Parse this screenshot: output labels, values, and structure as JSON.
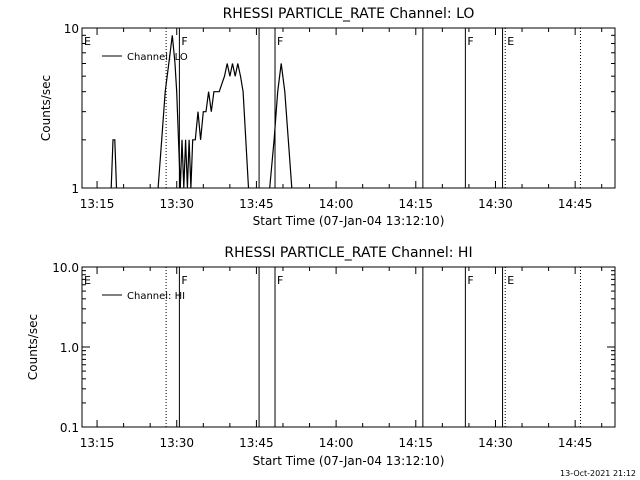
{
  "chart_data": [
    {
      "type": "line",
      "title": "RHESSI PARTICLE_RATE Channel: LO",
      "xlabel": "Start Time (07-Jan-04 13:12:10)",
      "ylabel": "Counts/sec",
      "yscale": "log",
      "xlim": [
        "13:12:10",
        "14:52:30"
      ],
      "ylim": [
        1,
        10
      ],
      "xticks": [
        "13:15",
        "13:30",
        "13:45",
        "14:00",
        "14:15",
        "14:30",
        "14:45"
      ],
      "yticks": [
        "1",
        "10"
      ],
      "legend": {
        "entry": "Channel: LO",
        "placement": "top-left"
      },
      "series": [
        {
          "name": "Channel: LO",
          "points": [
            [
              "13:17:40",
              1
            ],
            [
              "13:18:00",
              2
            ],
            [
              "13:18:20",
              2
            ],
            [
              "13:18:40",
              1
            ],
            [
              "13:26:30",
              1
            ],
            [
              "13:27:10",
              2
            ],
            [
              "13:27:50",
              4
            ],
            [
              "13:28:30",
              6
            ],
            [
              "13:29:10",
              9
            ],
            [
              "13:29:40",
              6
            ],
            [
              "13:30:00",
              4
            ],
            [
              "13:30:20",
              2
            ],
            [
              "13:30:40",
              1
            ],
            [
              "13:31:00",
              2
            ],
            [
              "13:31:20",
              1
            ],
            [
              "13:31:40",
              2
            ],
            [
              "13:32:00",
              1
            ],
            [
              "13:32:20",
              2
            ],
            [
              "13:32:40",
              1
            ],
            [
              "13:33:00",
              2
            ],
            [
              "13:33:30",
              2
            ],
            [
              "13:34:00",
              3
            ],
            [
              "13:34:30",
              2
            ],
            [
              "13:35:00",
              3
            ],
            [
              "13:35:30",
              3
            ],
            [
              "13:36:00",
              4
            ],
            [
              "13:36:30",
              3
            ],
            [
              "13:37:00",
              4
            ],
            [
              "13:38:00",
              4
            ],
            [
              "13:39:00",
              5
            ],
            [
              "13:39:30",
              6
            ],
            [
              "13:40:00",
              5
            ],
            [
              "13:40:30",
              6
            ],
            [
              "13:41:00",
              5
            ],
            [
              "13:41:30",
              6
            ],
            [
              "13:42:00",
              5
            ],
            [
              "13:42:30",
              4
            ],
            [
              "13:43:00",
              2
            ],
            [
              "13:43:30",
              1
            ],
            [
              "13:47:30",
              1
            ],
            [
              "13:48:20",
              2
            ],
            [
              "13:49:00",
              4
            ],
            [
              "13:49:40",
              6
            ],
            [
              "13:50:20",
              4
            ],
            [
              "13:51:00",
              2
            ],
            [
              "13:51:40",
              1
            ]
          ]
        }
      ],
      "markers": [
        {
          "time": "13:12:10",
          "label": "E",
          "style": "solid"
        },
        {
          "time": "13:28:00",
          "label": "",
          "style": "dotted"
        },
        {
          "time": "13:30:30",
          "label": "F",
          "style": "solid"
        },
        {
          "time": "13:45:30",
          "label": "",
          "style": "solid"
        },
        {
          "time": "13:48:30",
          "label": "F",
          "style": "solid"
        },
        {
          "time": "14:16:20",
          "label": "",
          "style": "solid"
        },
        {
          "time": "14:24:20",
          "label": "F",
          "style": "solid"
        },
        {
          "time": "14:31:20",
          "label": "",
          "style": "solid"
        },
        {
          "time": "14:31:50",
          "label": "E",
          "style": "dotted"
        },
        {
          "time": "14:46:00",
          "label": "",
          "style": "dotted"
        }
      ]
    },
    {
      "type": "line",
      "title": "RHESSI PARTICLE_RATE Channel: HI",
      "xlabel": "Start Time (07-Jan-04 13:12:10)",
      "ylabel": "Counts/sec",
      "yscale": "log",
      "xlim": [
        "13:12:10",
        "14:52:30"
      ],
      "ylim": [
        0.1,
        10
      ],
      "xticks": [
        "13:15",
        "13:30",
        "13:45",
        "14:00",
        "14:15",
        "14:30",
        "14:45"
      ],
      "yticks": [
        "0.1",
        "1.0",
        "10.0"
      ],
      "legend": {
        "entry": "Channel: HI",
        "placement": "top-left"
      },
      "series": [
        {
          "name": "Channel: HI",
          "points": []
        }
      ],
      "markers": [
        {
          "time": "13:12:10",
          "label": "E",
          "style": "solid"
        },
        {
          "time": "13:28:00",
          "label": "",
          "style": "dotted"
        },
        {
          "time": "13:30:30",
          "label": "F",
          "style": "solid"
        },
        {
          "time": "13:45:30",
          "label": "",
          "style": "solid"
        },
        {
          "time": "13:48:30",
          "label": "F",
          "style": "solid"
        },
        {
          "time": "14:16:20",
          "label": "",
          "style": "solid"
        },
        {
          "time": "14:24:20",
          "label": "F",
          "style": "solid"
        },
        {
          "time": "14:31:20",
          "label": "",
          "style": "solid"
        },
        {
          "time": "14:31:50",
          "label": "E",
          "style": "dotted"
        },
        {
          "time": "14:46:00",
          "label": "",
          "style": "dotted"
        }
      ]
    }
  ],
  "footer": {
    "timestamp": "13-Oct-2021 21:12"
  }
}
